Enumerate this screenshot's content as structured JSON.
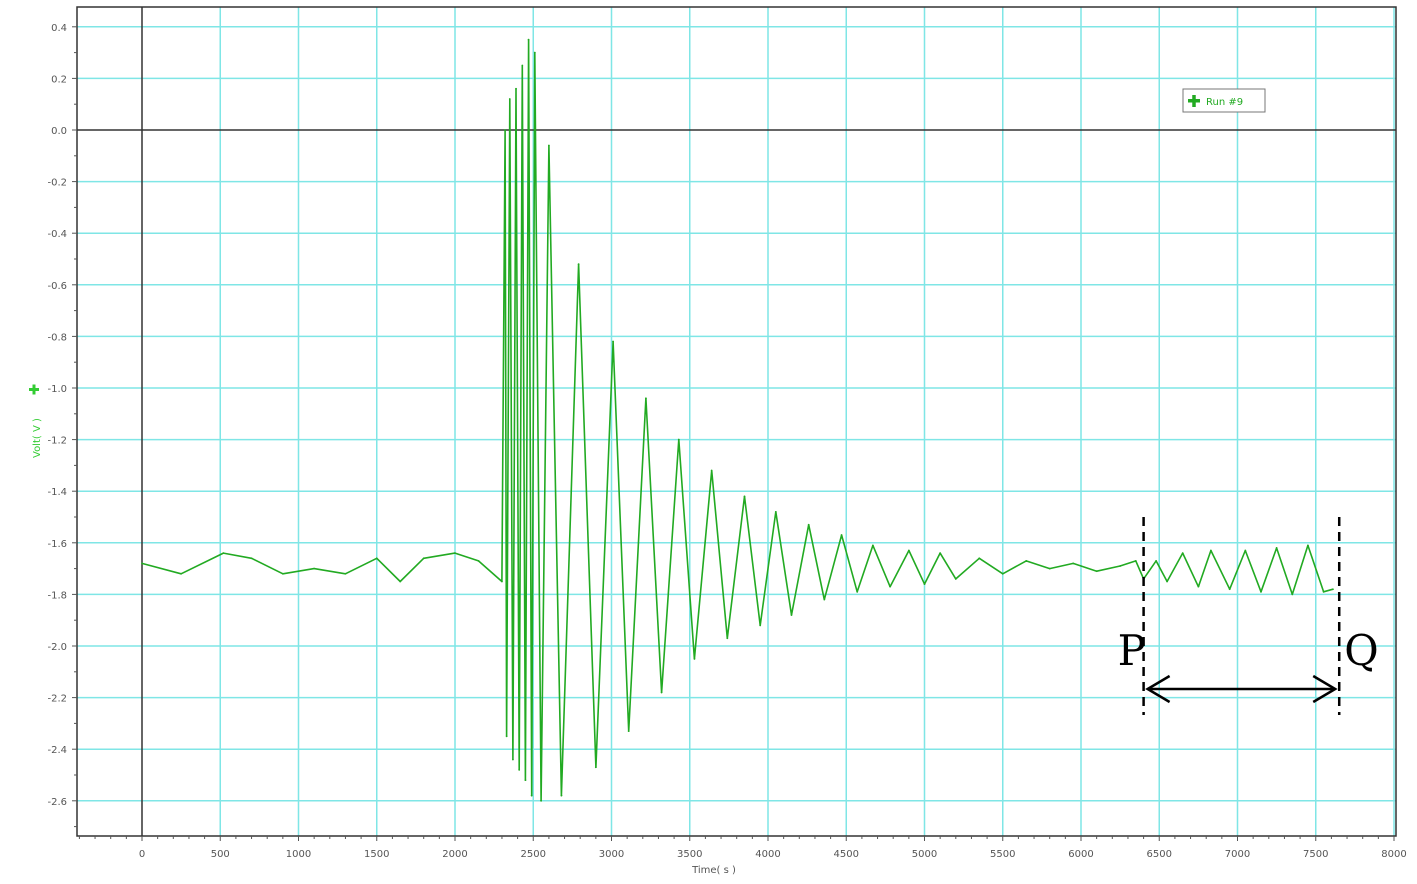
{
  "chart_data": {
    "type": "line",
    "title": "",
    "xlabel": "Time( s )",
    "ylabel": "Volt( V )",
    "xlim": [
      -420,
      8000
    ],
    "ylim": [
      -2.75,
      0.42
    ],
    "x_ticks": [
      0,
      500,
      1000,
      1500,
      2000,
      2500,
      3000,
      3500,
      4000,
      4500,
      5000,
      5500,
      6000,
      6500,
      7000,
      7500,
      8000
    ],
    "y_ticks": [
      0.4,
      0.2,
      0.0,
      -0.2,
      -0.4,
      -0.6,
      -0.8,
      -1.0,
      -1.2,
      -1.4,
      -1.6,
      -1.8,
      -2.0,
      -2.2,
      -2.4,
      -2.6
    ],
    "x_tick_labels": [
      "0",
      "500",
      "1000",
      "1500",
      "2000",
      "2500",
      "3000",
      "3500",
      "4000",
      "4500",
      "5000",
      "5500",
      "6000",
      "6500",
      "7000",
      "7500",
      "8000"
    ],
    "y_tick_labels": [
      "0.4",
      "0.2",
      "0.0",
      "-0.2",
      "-0.4",
      "-0.6",
      "-0.8",
      "-1.0",
      "-1.2",
      "-1.4",
      "-1.6",
      "-1.8",
      "-2.0",
      "-2.2",
      "-2.4",
      "-2.6"
    ],
    "grid": true,
    "legend_position": "top-right",
    "series": [
      {
        "name": "Run #9",
        "color": "#22aa22",
        "x": [
          0,
          250,
          520,
          700,
          900,
          1100,
          1300,
          1500,
          1650,
          1800,
          2000,
          2150,
          2300,
          2320,
          2330,
          2350,
          2370,
          2390,
          2410,
          2430,
          2450,
          2470,
          2490,
          2510,
          2550,
          2600,
          2680,
          2790,
          2900,
          3010,
          3110,
          3220,
          3320,
          3430,
          3530,
          3640,
          3740,
          3850,
          3950,
          4050,
          4150,
          4260,
          4360,
          4470,
          4570,
          4670,
          4780,
          4900,
          5000,
          5100,
          5200,
          5350,
          5500,
          5650,
          5800,
          5950,
          6100,
          6250,
          6350,
          6400,
          6480,
          6550,
          6650,
          6750,
          6830,
          6950,
          7050,
          7150,
          7250,
          7350,
          7450,
          7550,
          7610
        ],
        "y": [
          -1.68,
          -1.72,
          -1.64,
          -1.66,
          -1.72,
          -1.7,
          -1.72,
          -1.66,
          -1.75,
          -1.66,
          -1.64,
          -1.67,
          -1.75,
          0.0,
          -2.35,
          0.12,
          -2.44,
          0.16,
          -2.48,
          0.25,
          -2.52,
          0.35,
          -2.58,
          0.3,
          -2.6,
          -0.06,
          -2.58,
          -0.52,
          -2.47,
          -0.82,
          -2.33,
          -1.04,
          -2.18,
          -1.2,
          -2.05,
          -1.32,
          -1.97,
          -1.42,
          -1.92,
          -1.48,
          -1.88,
          -1.53,
          -1.82,
          -1.57,
          -1.79,
          -1.61,
          -1.77,
          -1.63,
          -1.76,
          -1.64,
          -1.74,
          -1.66,
          -1.72,
          -1.67,
          -1.7,
          -1.68,
          -1.71,
          -1.69,
          -1.67,
          -1.74,
          -1.67,
          -1.75,
          -1.64,
          -1.77,
          -1.63,
          -1.78,
          -1.63,
          -1.79,
          -1.62,
          -1.8,
          -1.61,
          -1.79,
          -1.78
        ]
      }
    ],
    "annotations": [
      {
        "text": "P",
        "x": 6400
      },
      {
        "text": "Q",
        "x": 7650
      }
    ]
  },
  "colors": {
    "grid": "#7fe6e6",
    "axis": "#555555",
    "series": "#22aa22",
    "annotation": "#000000"
  }
}
